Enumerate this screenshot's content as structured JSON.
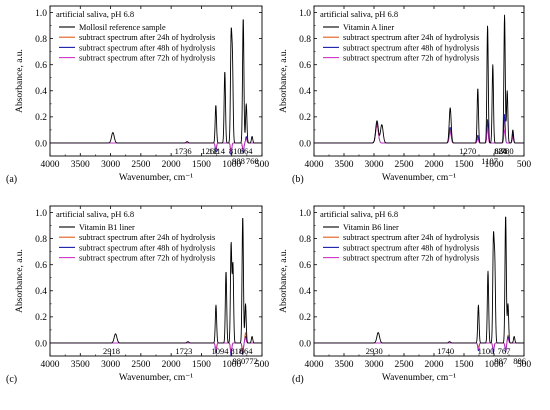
{
  "chart_data": [
    {
      "panel": "(a)",
      "type": "line",
      "condition": "artificial saliva, pH 6.8",
      "xlabel": "Wavenumber, cm⁻¹",
      "ylabel": "Absorbance, a.u.",
      "xlim": [
        4000,
        500
      ],
      "ylim": [
        -0.1,
        1.05
      ],
      "x_ticks": [
        "4000",
        "3500",
        "3000",
        "2500",
        "2000",
        "1500",
        "1000",
        "500"
      ],
      "y_ticks": [
        "0.0",
        "0.2",
        "0.4",
        "0.6",
        "0.8",
        "1.0"
      ],
      "legend_position": "top-left",
      "series": [
        {
          "name": "Mollosil reference sample",
          "color": "#000000",
          "peaks": [
            [
              2962,
              0.08
            ],
            [
              1736,
              0.01
            ],
            [
              1262,
              0.29
            ],
            [
              1114,
              0.55
            ],
            [
              1010,
              0.78
            ],
            [
              988,
              0.6
            ],
            [
              810,
              0.96
            ],
            [
              760,
              0.3
            ],
            [
              664,
              0.05
            ]
          ]
        },
        {
          "name": "subtract spectrum after 24h of hydrolysis",
          "color": "#e05a1a",
          "peaks": [
            [
              1262,
              -0.04
            ],
            [
              1010,
              -0.06
            ],
            [
              810,
              -0.05
            ],
            [
              760,
              0.04
            ]
          ]
        },
        {
          "name": "subtract spectrum after 48h of hydrolysis",
          "color": "#1a1aa8",
          "peaks": [
            [
              1262,
              -0.07
            ],
            [
              1010,
              -0.09
            ],
            [
              810,
              -0.08
            ],
            [
              760,
              0.05
            ]
          ]
        },
        {
          "name": "subtract spectrum after 72h of hydrolysis",
          "color": "#cc33cc",
          "peaks": [
            [
              1262,
              -0.05
            ],
            [
              1010,
              -0.07
            ],
            [
              810,
              -0.06
            ],
            [
              760,
              0.03
            ]
          ]
        }
      ],
      "annotations": [
        {
          "text": "1736",
          "x": 1736,
          "y": 0.01
        },
        {
          "text": "1262",
          "x": 1262,
          "y": 0.0
        },
        {
          "text": "1114",
          "x": 1114,
          "y": 0.0
        },
        {
          "text": "810",
          "x": 810,
          "y": 0.0
        },
        {
          "text": "664",
          "x": 664,
          "y": 0.0
        },
        {
          "text": "988",
          "x": 988,
          "y": 0.0
        },
        {
          "text": "760",
          "x": 760,
          "y": 0.0
        }
      ]
    },
    {
      "panel": "(b)",
      "type": "line",
      "condition": "artificial saliva, pH 6.8",
      "xlabel": "Wavenumber, cm⁻¹",
      "ylabel": "Absorbance, a.u.",
      "xlim": [
        4000,
        500
      ],
      "ylim": [
        -0.1,
        1.05
      ],
      "x_ticks": [
        "4000",
        "3500",
        "3000",
        "2500",
        "2000",
        "1500",
        "1000",
        "500"
      ],
      "y_ticks": [
        "0.0",
        "0.2",
        "0.4",
        "0.6",
        "0.8",
        "1.0"
      ],
      "legend_position": "top-left",
      "series": [
        {
          "name": "Vitamin A liner",
          "color": "#000000",
          "peaks": [
            [
              2950,
              0.17
            ],
            [
              2870,
              0.14
            ],
            [
              1730,
              0.27
            ],
            [
              1270,
              0.42
            ],
            [
              1107,
              0.9
            ],
            [
              1020,
              0.6
            ],
            [
              824,
              0.98
            ],
            [
              780,
              0.4
            ],
            [
              686,
              0.1
            ]
          ]
        },
        {
          "name": "subtract spectrum after 24h of hydrolysis",
          "color": "#e05a1a",
          "peaks": [
            [
              2950,
              0.13
            ],
            [
              1730,
              0.1
            ],
            [
              1270,
              0.05
            ],
            [
              1107,
              0.15
            ],
            [
              824,
              0.2
            ],
            [
              686,
              0.06
            ]
          ]
        },
        {
          "name": "subtract spectrum after 48h of hydrolysis",
          "color": "#1a1aa8",
          "peaks": [
            [
              2950,
              0.15
            ],
            [
              1730,
              0.12
            ],
            [
              1270,
              0.06
            ],
            [
              1107,
              0.18
            ],
            [
              824,
              0.22
            ],
            [
              686,
              0.07
            ]
          ]
        },
        {
          "name": "subtract spectrum after 72h of hydrolysis",
          "color": "#cc33cc",
          "peaks": [
            [
              2950,
              0.14
            ],
            [
              1730,
              0.08
            ],
            [
              1270,
              0.03
            ],
            [
              1107,
              0.12
            ],
            [
              824,
              0.1
            ],
            [
              686,
              0.04
            ]
          ]
        }
      ],
      "annotations": [
        {
          "text": "1270",
          "x": 1270,
          "y": 0.0
        },
        {
          "text": "1107",
          "x": 1107,
          "y": 0.0
        },
        {
          "text": "824",
          "x": 824,
          "y": 0.0
        },
        {
          "text": "780",
          "x": 780,
          "y": 0.0
        },
        {
          "text": "686",
          "x": 686,
          "y": 0.0
        }
      ]
    },
    {
      "panel": "(c)",
      "type": "line",
      "condition": "artificial saliva, pH 6.8",
      "xlabel": "Wavenumber, cm⁻¹",
      "ylabel": "Absorbance, a.u.",
      "xlim": [
        4000,
        500
      ],
      "ylim": [
        -0.1,
        1.05
      ],
      "x_ticks": [
        "4000",
        "3500",
        "3000",
        "2500",
        "2000",
        "1500",
        "1000",
        "500"
      ],
      "y_ticks": [
        "0.0",
        "0.2",
        "0.4",
        "0.6",
        "0.8",
        "1.0"
      ],
      "legend_position": "top-left",
      "series": [
        {
          "name": "Vitamin B1 liner",
          "color": "#000000",
          "peaks": [
            [
              2918,
              0.07
            ],
            [
              1723,
              0.01
            ],
            [
              1260,
              0.29
            ],
            [
              1094,
              0.55
            ],
            [
              1010,
              0.76
            ],
            [
              980,
              0.6
            ],
            [
              818,
              0.97
            ],
            [
              772,
              0.3
            ],
            [
              664,
              0.05
            ]
          ]
        },
        {
          "name": "subtract spectrum after 24h of hydrolysis",
          "color": "#e05a1a",
          "peaks": [
            [
              1260,
              -0.04
            ],
            [
              1010,
              -0.06
            ],
            [
              818,
              -0.05
            ],
            [
              772,
              0.08
            ]
          ]
        },
        {
          "name": "subtract spectrum after 48h of hydrolysis",
          "color": "#1a1aa8",
          "peaks": [
            [
              1260,
              -0.08
            ],
            [
              1010,
              -0.1
            ],
            [
              818,
              -0.09
            ],
            [
              772,
              0.05
            ]
          ]
        },
        {
          "name": "subtract spectrum after 72h of hydrolysis",
          "color": "#cc33cc",
          "peaks": [
            [
              1260,
              -0.06
            ],
            [
              1010,
              -0.08
            ],
            [
              818,
              -0.07
            ],
            [
              772,
              0.04
            ]
          ]
        }
      ],
      "annotations": [
        {
          "text": "2918",
          "x": 2918,
          "y": 0.0
        },
        {
          "text": "1723",
          "x": 1723,
          "y": 0.0
        },
        {
          "text": "1094",
          "x": 1094,
          "y": 0.0
        },
        {
          "text": "818",
          "x": 818,
          "y": 0.0
        },
        {
          "text": "664",
          "x": 664,
          "y": 0.0
        },
        {
          "text": "980",
          "x": 980,
          "y": 0.0
        },
        {
          "text": "772",
          "x": 772,
          "y": 0.0
        }
      ]
    },
    {
      "panel": "(d)",
      "type": "line",
      "condition": "artificial saliva, pH 6.8",
      "xlabel": "Wavenumber, cm⁻¹",
      "ylabel": "Absorbance, a.u.",
      "xlim": [
        4000,
        500
      ],
      "ylim": [
        -0.1,
        1.05
      ],
      "x_ticks": [
        "4000",
        "3500",
        "3000",
        "2500",
        "2000",
        "1500",
        "1000",
        "500"
      ],
      "y_ticks": [
        "0.0",
        "0.2",
        "0.4",
        "0.6",
        "0.8",
        "1.0"
      ],
      "legend_position": "top-left",
      "series": [
        {
          "name": "Vitamin B6 liner",
          "color": "#000000",
          "peaks": [
            [
              2930,
              0.08
            ],
            [
              1740,
              0.01
            ],
            [
              1260,
              0.29
            ],
            [
              1100,
              0.55
            ],
            [
              1010,
              0.77
            ],
            [
              987,
              0.6
            ],
            [
              806,
              0.98
            ],
            [
              767,
              0.3
            ],
            [
              664,
              0.05
            ]
          ]
        },
        {
          "name": "subtract spectrum after 24h of hydrolysis",
          "color": "#e05a1a",
          "peaks": [
            [
              1260,
              -0.03
            ],
            [
              1010,
              -0.05
            ],
            [
              806,
              -0.04
            ],
            [
              767,
              0.06
            ]
          ]
        },
        {
          "name": "subtract spectrum after 48h of hydrolysis",
          "color": "#1a1aa8",
          "peaks": [
            [
              1260,
              -0.06
            ],
            [
              1010,
              -0.08
            ],
            [
              806,
              -0.07
            ],
            [
              767,
              0.05
            ]
          ]
        },
        {
          "name": "subtract spectrum after 72h of hydrolysis",
          "color": "#cc33cc",
          "peaks": [
            [
              1260,
              -0.05
            ],
            [
              1010,
              -0.06
            ],
            [
              806,
              -0.06
            ],
            [
              767,
              0.03
            ]
          ]
        }
      ],
      "annotations": [
        {
          "text": "2930",
          "x": 2930,
          "y": 0.0
        },
        {
          "text": "1740",
          "x": 1740,
          "y": 0.0
        },
        {
          "text": "1100",
          "x": 1100,
          "y": 0.0
        },
        {
          "text": "987",
          "x": 987,
          "y": 0.0
        },
        {
          "text": "806",
          "x": 806,
          "y": 0.0
        },
        {
          "text": "767",
          "x": 767,
          "y": 0.0
        }
      ]
    }
  ]
}
